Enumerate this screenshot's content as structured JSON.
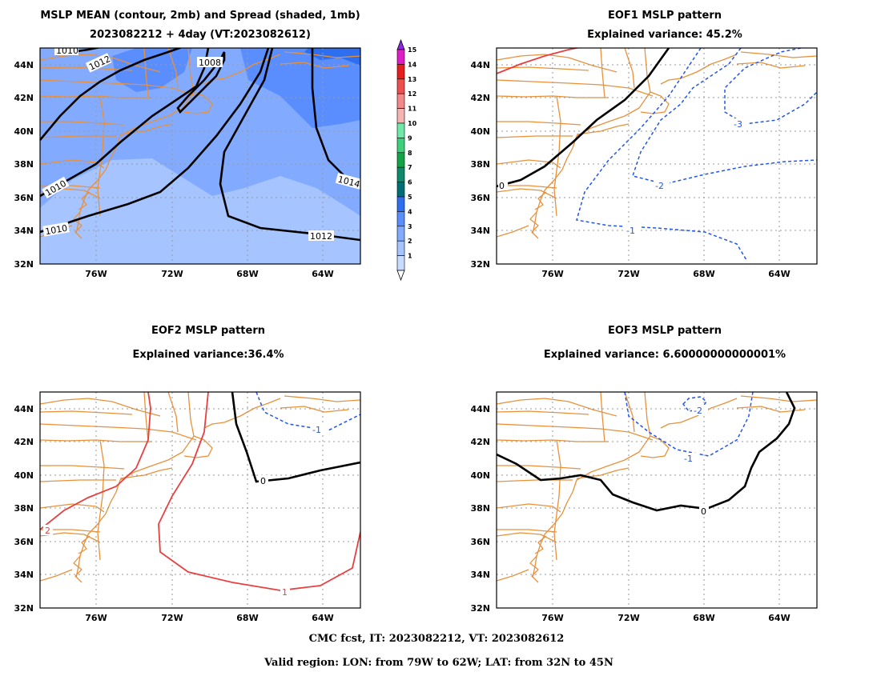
{
  "panels": [
    {
      "id": "mean-spread",
      "title": "MSLP MEAN (contour, 2mb) and Spread (shaded, 1mb)",
      "subtitle": "2023082212 + 4day (VT:2023082612)",
      "x_ticks": [
        "76W",
        "72W",
        "68W",
        "64W"
      ],
      "y_ticks": [
        "44N",
        "42N",
        "40N",
        "38N",
        "36N",
        "34N",
        "32N"
      ],
      "contour_labels": [
        "1010",
        "1012",
        "1008",
        "1010",
        "1010",
        "1014",
        "1012"
      ],
      "colorbar": {
        "levels": [
          "1",
          "2",
          "3",
          "4",
          "5",
          "6",
          "7",
          "8",
          "9",
          "10",
          "11",
          "12",
          "13",
          "14",
          "15"
        ],
        "colors": [
          "#c8dcff",
          "#a6c4ff",
          "#82abff",
          "#5a8eff",
          "#2e6ef0",
          "#006e76",
          "#0e8a6a",
          "#15a34a",
          "#3ecf7a",
          "#6fe8a8",
          "#f5b4b4",
          "#f28a8a",
          "#ee5050",
          "#e81e1e",
          "#e01ec8"
        ],
        "over_color": "#8a2be2",
        "under_color": "#ffffff"
      }
    },
    {
      "id": "eof1",
      "title": "EOF1 MSLP pattern",
      "subtitle": "Explained variance: 45.2%",
      "x_ticks": [
        "76W",
        "72W",
        "68W",
        "64W"
      ],
      "y_ticks": [
        "44N",
        "42N",
        "40N",
        "38N",
        "36N",
        "34N",
        "32N"
      ],
      "contour_labels": [
        "0",
        "-3",
        "-2",
        "-1"
      ]
    },
    {
      "id": "eof2",
      "title": "EOF2 MSLP pattern",
      "subtitle": "Explained variance:36.4%",
      "x_ticks": [
        "76W",
        "72W",
        "68W",
        "64W"
      ],
      "y_ticks": [
        "44N",
        "42N",
        "40N",
        "38N",
        "36N",
        "34N",
        "32N"
      ],
      "contour_labels": [
        "-1",
        "0",
        "2",
        "1"
      ]
    },
    {
      "id": "eof3",
      "title": "EOF3 MSLP pattern",
      "subtitle": "Explained variance: 6.60000000000001%",
      "x_ticks": [
        "76W",
        "72W",
        "68W",
        "64W"
      ],
      "y_ticks": [
        "44N",
        "42N",
        "40N",
        "38N",
        "36N",
        "34N",
        "32N"
      ],
      "contour_labels": [
        "-2",
        "-1",
        "0"
      ]
    }
  ],
  "footer": {
    "line1": "CMC fcst, IT: 2023082212, VT: 2023082612",
    "line2": "Valid region: LON: from 79W to 62W; LAT: from 32N to 45N"
  },
  "colors": {
    "coastline": "#e8913a",
    "contour_mean": "#000000",
    "contour_positive": "#e84040",
    "contour_negative": "#2255ee",
    "contour_zero": "#000000"
  }
}
